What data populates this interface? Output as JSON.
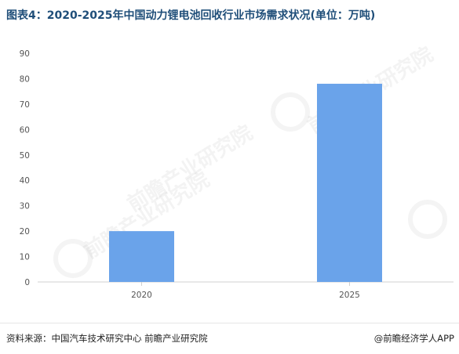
{
  "title": "图表4：2020-2025年中国动力锂电池回收行业市场需求状况(单位：万吨)",
  "watermark": "前瞻产业研究院",
  "footer": {
    "source": "资料来源：中国汽车技术研究中心 前瞻产业研究院",
    "brand": "@前瞻经济学人APP"
  },
  "colors": {
    "bar": "#6aa3ea",
    "axis": "#d0d0d0",
    "tick_text": "#555555",
    "title": "#1f4e79"
  },
  "chart_data": {
    "type": "bar",
    "categories": [
      "2020",
      "2025"
    ],
    "values": [
      20,
      78
    ],
    "ylim": [
      0,
      90
    ],
    "yticks": [
      0,
      10,
      20,
      30,
      40,
      50,
      60,
      70,
      80,
      90
    ],
    "grid": false,
    "legend": "none",
    "xlabel": "",
    "ylabel": ""
  }
}
